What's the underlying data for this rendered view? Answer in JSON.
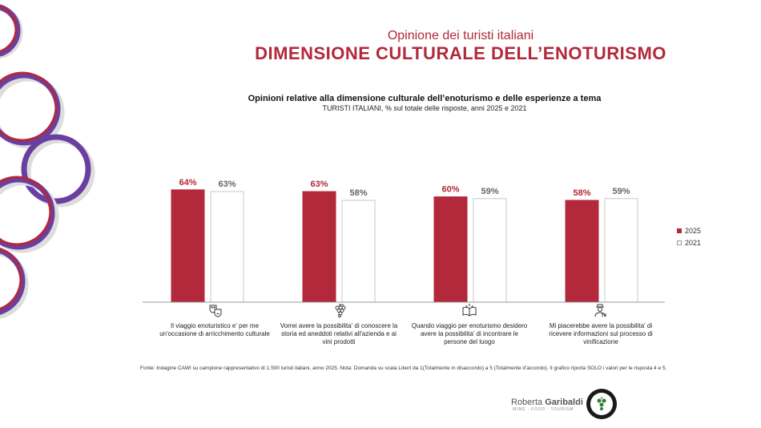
{
  "header": {
    "supertitle": "Opinione dei turisti italiani",
    "title": "DIMENSIONE CULTURALE DELL’ENOTURISMO"
  },
  "chart_data": {
    "type": "bar",
    "title": "Opinioni relative alla dimensione culturale dell’enoturismo e delle esperienze a tema",
    "subtitle": "TURISTI ITALIANI, % sul totale delle risposte, anni 2025 e 2021",
    "categories": [
      "Il viaggio enoturistico e' per me un'occasione di arricchimento culturale",
      "Vorrei avere la possibilita' di conoscere la storia ed aneddoti relativi all'azienda e ai vini prodotti",
      "Quando viaggio per enoturismo desidero avere la possibilita' di incontrare le persone del luogo",
      "Mi piacerebbe avere la possibilita' di ricevere informazioni sul processo di vinificazione"
    ],
    "series": [
      {
        "name": "2025",
        "values": [
          64,
          63,
          60,
          58
        ],
        "labels": [
          "64%",
          "63%",
          "60%",
          "58%"
        ],
        "color": "#b3283a"
      },
      {
        "name": "2021",
        "values": [
          63,
          58,
          59,
          59
        ],
        "labels": [
          "63%",
          "58%",
          "59%",
          "59%"
        ],
        "color": "#ffffff"
      }
    ],
    "ylim": [
      0,
      100
    ],
    "grid": false,
    "legend": "right"
  },
  "legend": {
    "items": [
      "2025",
      "2021"
    ]
  },
  "icons": [
    "theater-masks-icon",
    "grapes-icon",
    "open-book-icon",
    "winemaker-icon"
  ],
  "footnote": "Fonte: Indagine CAWI su campione rappresentativo di 1.500 turisti italiani, anno 2025. Nota: Domanda su scala Likert da 1(Totalmente in disaccordo) a 5 (Totalmente d’accordo). Il grafico riporta SOLO i valori per le risposta 4 e 5.",
  "brand": {
    "first": "Roberta",
    "last": "Garibaldi",
    "tagline": "WINE · FOOD · TOURISM"
  },
  "colors": {
    "accent": "#b3283a",
    "purple": "#6b3fa0"
  }
}
